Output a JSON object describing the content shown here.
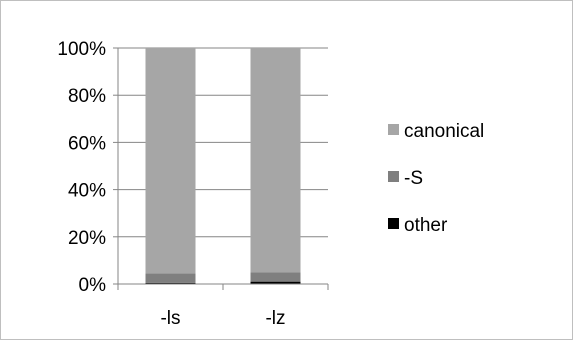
{
  "chart_data": {
    "type": "bar",
    "stacked": true,
    "percent": true,
    "categories": [
      "-ls",
      "-lz"
    ],
    "series": [
      {
        "name": "other",
        "values": [
          0.5,
          1.0
        ],
        "color": "#000000"
      },
      {
        "name": "-S",
        "values": [
          4.0,
          4.0
        ],
        "color": "#7f7f7f"
      },
      {
        "name": "canonical",
        "values": [
          95.5,
          95.0
        ],
        "color": "#a6a6a6"
      }
    ],
    "ylim": [
      0,
      100
    ],
    "yticks": [
      "0%",
      "20%",
      "40%",
      "60%",
      "80%",
      "100%"
    ],
    "grid": true,
    "legend_position": "right",
    "legend": [
      "canonical",
      "-S",
      "other"
    ]
  }
}
